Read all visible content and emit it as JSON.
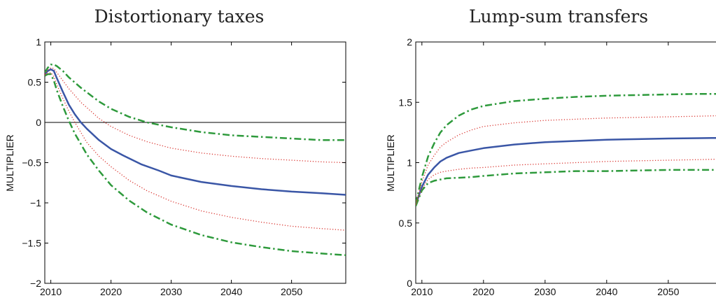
{
  "chart_data": [
    {
      "type": "line",
      "title": "Distortionary taxes",
      "xlabel": "",
      "ylabel": "MULTIPLIER",
      "xlim": [
        2009,
        2059
      ],
      "ylim": [
        -2,
        1
      ],
      "xticks": [
        2010,
        2020,
        2030,
        2040,
        2050
      ],
      "yticks": [
        -2,
        -1.5,
        -1,
        -0.5,
        0,
        0.5,
        1
      ],
      "ytick_labels": [
        "−2",
        "−1.5",
        "−1",
        "−0.5",
        "0",
        "0.5",
        "1"
      ],
      "zero_line": true,
      "grid": false,
      "legend": "none",
      "series": [
        {
          "style": "solid",
          "color": "#3a56a6",
          "width": 2.5,
          "x": [
            2009,
            2009.5,
            2010,
            2010.5,
            2011,
            2012,
            2013,
            2014,
            2015,
            2016,
            2018,
            2020,
            2022,
            2025,
            2028,
            2030,
            2035,
            2040,
            2045,
            2050,
            2055,
            2059
          ],
          "y": [
            0.6,
            0.64,
            0.66,
            0.64,
            0.55,
            0.38,
            0.22,
            0.1,
            0.0,
            -0.08,
            -0.22,
            -0.33,
            -0.41,
            -0.52,
            -0.6,
            -0.66,
            -0.74,
            -0.79,
            -0.83,
            -0.86,
            -0.88,
            -0.9
          ]
        },
        {
          "style": "dashdot",
          "color": "#2e9a3c",
          "width": 2.5,
          "x": [
            2009,
            2009.5,
            2010,
            2010.5,
            2011,
            2012,
            2013,
            2015,
            2018,
            2020,
            2023,
            2026,
            2030,
            2035,
            2040,
            2045,
            2050,
            2055,
            2059
          ],
          "y": [
            0.62,
            0.68,
            0.72,
            0.72,
            0.7,
            0.64,
            0.56,
            0.43,
            0.26,
            0.17,
            0.07,
            0.0,
            -0.06,
            -0.12,
            -0.16,
            -0.18,
            -0.2,
            -0.22,
            -0.22
          ]
        },
        {
          "style": "dashdot",
          "color": "#2e9a3c",
          "width": 2.5,
          "x": [
            2009,
            2009.5,
            2010,
            2010.5,
            2011,
            2012,
            2013,
            2014,
            2016,
            2018,
            2020,
            2023,
            2026,
            2030,
            2035,
            2040,
            2045,
            2050,
            2055,
            2059
          ],
          "y": [
            0.58,
            0.6,
            0.6,
            0.52,
            0.4,
            0.2,
            0.02,
            -0.14,
            -0.4,
            -0.6,
            -0.78,
            -0.97,
            -1.12,
            -1.27,
            -1.4,
            -1.49,
            -1.55,
            -1.6,
            -1.63,
            -1.65
          ]
        },
        {
          "style": "dotted",
          "color": "#d9332e",
          "width": 1.3,
          "x": [
            2009,
            2009.5,
            2010,
            2010.5,
            2011,
            2012,
            2013,
            2015,
            2018,
            2020,
            2023,
            2026,
            2030,
            2035,
            2040,
            2045,
            2050,
            2055,
            2059
          ],
          "y": [
            0.6,
            0.65,
            0.68,
            0.67,
            0.62,
            0.52,
            0.42,
            0.25,
            0.05,
            -0.05,
            -0.16,
            -0.24,
            -0.32,
            -0.38,
            -0.42,
            -0.45,
            -0.47,
            -0.49,
            -0.5
          ]
        },
        {
          "style": "dotted",
          "color": "#d9332e",
          "width": 1.3,
          "x": [
            2009,
            2009.5,
            2010,
            2010.5,
            2011,
            2012,
            2013,
            2014,
            2016,
            2018,
            2020,
            2023,
            2026,
            2030,
            2035,
            2040,
            2045,
            2050,
            2055,
            2059
          ],
          "y": [
            0.59,
            0.61,
            0.62,
            0.57,
            0.47,
            0.3,
            0.14,
            0.0,
            -0.25,
            -0.42,
            -0.55,
            -0.72,
            -0.85,
            -0.98,
            -1.1,
            -1.18,
            -1.24,
            -1.29,
            -1.32,
            -1.34
          ]
        }
      ]
    },
    {
      "type": "line",
      "title": "Lump-sum transfers",
      "xlabel": "",
      "ylabel": "MULTIPLIER",
      "xlim": [
        2009,
        2059
      ],
      "ylim": [
        0,
        2
      ],
      "xticks": [
        2010,
        2020,
        2030,
        2040,
        2050
      ],
      "yticks": [
        0,
        0.5,
        1,
        1.5,
        2
      ],
      "ytick_labels": [
        "0",
        "0.5",
        "1",
        "1.5",
        "2"
      ],
      "zero_line": false,
      "grid": false,
      "legend": "none",
      "series": [
        {
          "style": "solid",
          "color": "#3a56a6",
          "width": 2.5,
          "x": [
            2009,
            2010,
            2011,
            2012,
            2013,
            2014,
            2016,
            2018,
            2020,
            2025,
            2030,
            2035,
            2040,
            2045,
            2050,
            2055,
            2059
          ],
          "y": [
            0.65,
            0.8,
            0.9,
            0.96,
            1.01,
            1.04,
            1.08,
            1.1,
            1.12,
            1.15,
            1.17,
            1.18,
            1.19,
            1.195,
            1.2,
            1.203,
            1.205
          ]
        },
        {
          "style": "dashdot",
          "color": "#2e9a3c",
          "width": 2.5,
          "x": [
            2009,
            2010,
            2011,
            2012,
            2013,
            2014,
            2016,
            2018,
            2020,
            2025,
            2030,
            2035,
            2040,
            2045,
            2050,
            2055,
            2059
          ],
          "y": [
            0.66,
            0.88,
            1.05,
            1.16,
            1.25,
            1.31,
            1.39,
            1.44,
            1.47,
            1.51,
            1.53,
            1.545,
            1.555,
            1.56,
            1.565,
            1.57,
            1.57
          ]
        },
        {
          "style": "dashdot",
          "color": "#2e9a3c",
          "width": 2.5,
          "x": [
            2009,
            2010,
            2011,
            2012,
            2013,
            2014,
            2016,
            2018,
            2020,
            2025,
            2030,
            2035,
            2040,
            2045,
            2050,
            2055,
            2059
          ],
          "y": [
            0.64,
            0.77,
            0.83,
            0.85,
            0.86,
            0.87,
            0.875,
            0.88,
            0.89,
            0.91,
            0.92,
            0.93,
            0.93,
            0.935,
            0.94,
            0.94,
            0.94
          ]
        },
        {
          "style": "dotted",
          "color": "#d9332e",
          "width": 1.3,
          "x": [
            2009,
            2010,
            2011,
            2012,
            2013,
            2014,
            2016,
            2018,
            2020,
            2025,
            2030,
            2035,
            2040,
            2045,
            2050,
            2055,
            2059
          ],
          "y": [
            0.66,
            0.84,
            0.98,
            1.06,
            1.13,
            1.17,
            1.23,
            1.27,
            1.3,
            1.33,
            1.35,
            1.36,
            1.37,
            1.375,
            1.38,
            1.385,
            1.39
          ]
        },
        {
          "style": "dotted",
          "color": "#d9332e",
          "width": 1.3,
          "x": [
            2009,
            2010,
            2011,
            2012,
            2013,
            2014,
            2016,
            2018,
            2020,
            2025,
            2030,
            2035,
            2040,
            2045,
            2050,
            2055,
            2059
          ],
          "y": [
            0.65,
            0.78,
            0.86,
            0.9,
            0.92,
            0.93,
            0.945,
            0.955,
            0.96,
            0.98,
            0.99,
            1.0,
            1.01,
            1.015,
            1.02,
            1.025,
            1.03
          ]
        }
      ]
    }
  ]
}
